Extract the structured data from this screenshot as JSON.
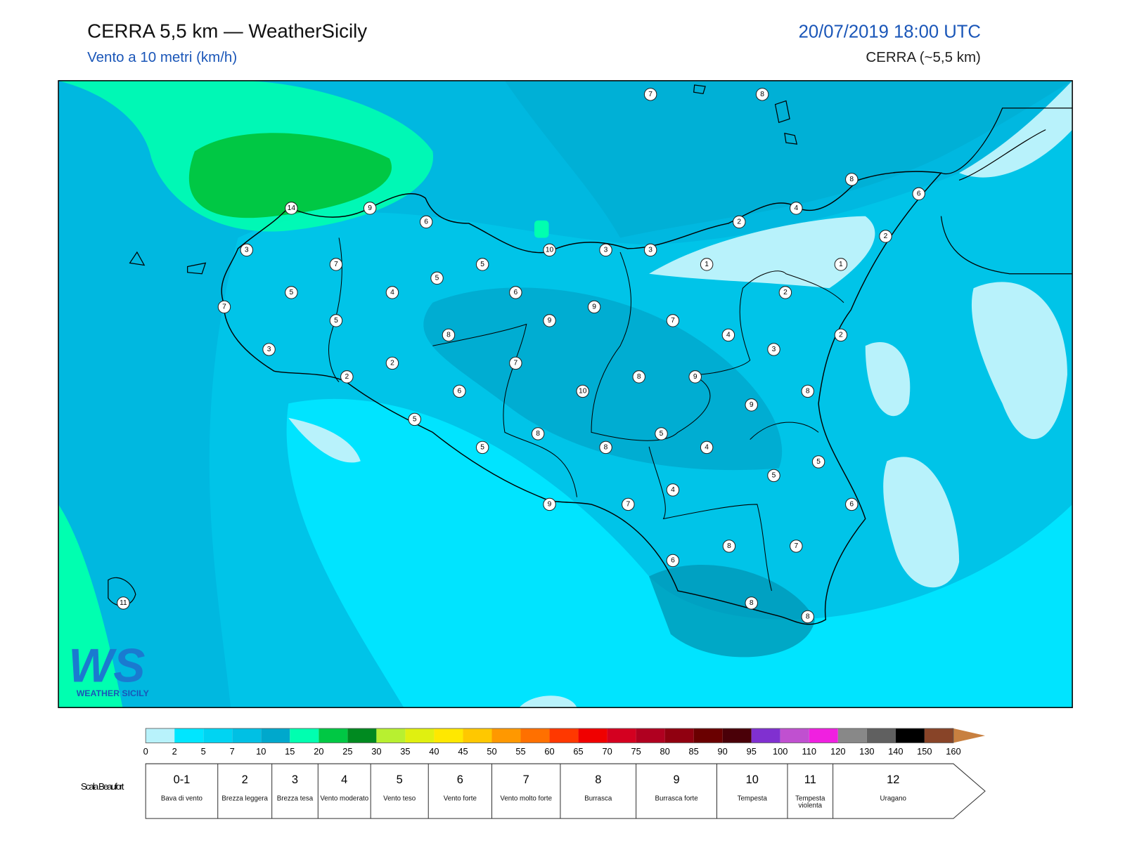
{
  "header": {
    "title": "CERRA 5,5 km — WeatherSicily",
    "subtitle": "Vento a 10 metri (km/h)",
    "date": "20/07/2019 18:00 UTC",
    "model": "CERRA (~5,5 km)"
  },
  "stations": [
    7,
    8,
    8,
    6,
    4,
    2,
    2,
    14,
    9,
    6,
    3,
    10,
    3,
    3,
    1,
    1,
    7,
    5,
    5,
    5,
    4,
    6,
    2,
    7,
    9,
    5,
    9,
    7,
    8,
    4,
    2,
    3,
    3,
    2,
    7,
    2,
    8,
    9,
    6,
    10,
    8,
    9,
    5,
    8,
    5,
    5,
    8,
    4,
    5,
    5,
    4,
    6,
    9,
    7,
    8,
    7,
    6,
    8,
    8,
    11
  ],
  "logo": {
    "mark": "WS",
    "text": "WEATHER SICILY"
  },
  "color_scale": {
    "ticks": [
      0,
      2,
      5,
      7,
      10,
      15,
      20,
      25,
      30,
      35,
      40,
      45,
      50,
      55,
      60,
      65,
      70,
      75,
      80,
      85,
      90,
      95,
      100,
      110,
      120,
      130,
      140,
      150,
      160
    ],
    "colors": [
      "#b8f2fb",
      "#00e6ff",
      "#00d4f2",
      "#00c0e4",
      "#00a8cc",
      "#00ffb0",
      "#00c844",
      "#008a20",
      "#b8f030",
      "#e0f010",
      "#ffe800",
      "#ffc800",
      "#ff9800",
      "#ff7000",
      "#ff3800",
      "#f00000",
      "#d40020",
      "#b00020",
      "#900010",
      "#6a0000",
      "#4a0008",
      "#8030d0",
      "#c050d0",
      "#f020e0",
      "#888888",
      "#606060",
      "#000000",
      "#884428",
      "#c88040"
    ]
  },
  "beaufort": {
    "label": "Scala Beaufort",
    "levels": [
      {
        "force": "0-1",
        "name": "Bava di vento"
      },
      {
        "force": "2",
        "name": "Brezza leggera"
      },
      {
        "force": "3",
        "name": "Brezza tesa"
      },
      {
        "force": "4",
        "name": "Vento moderato"
      },
      {
        "force": "5",
        "name": "Vento teso"
      },
      {
        "force": "6",
        "name": "Vento forte"
      },
      {
        "force": "7",
        "name": "Vento molto forte"
      },
      {
        "force": "8",
        "name": "Burrasca"
      },
      {
        "force": "9",
        "name": "Burrasca forte"
      },
      {
        "force": "10",
        "name": "Tempesta"
      },
      {
        "force": "11",
        "name": "Tempesta violenta"
      },
      {
        "force": "12",
        "name": "Uragano"
      }
    ]
  }
}
